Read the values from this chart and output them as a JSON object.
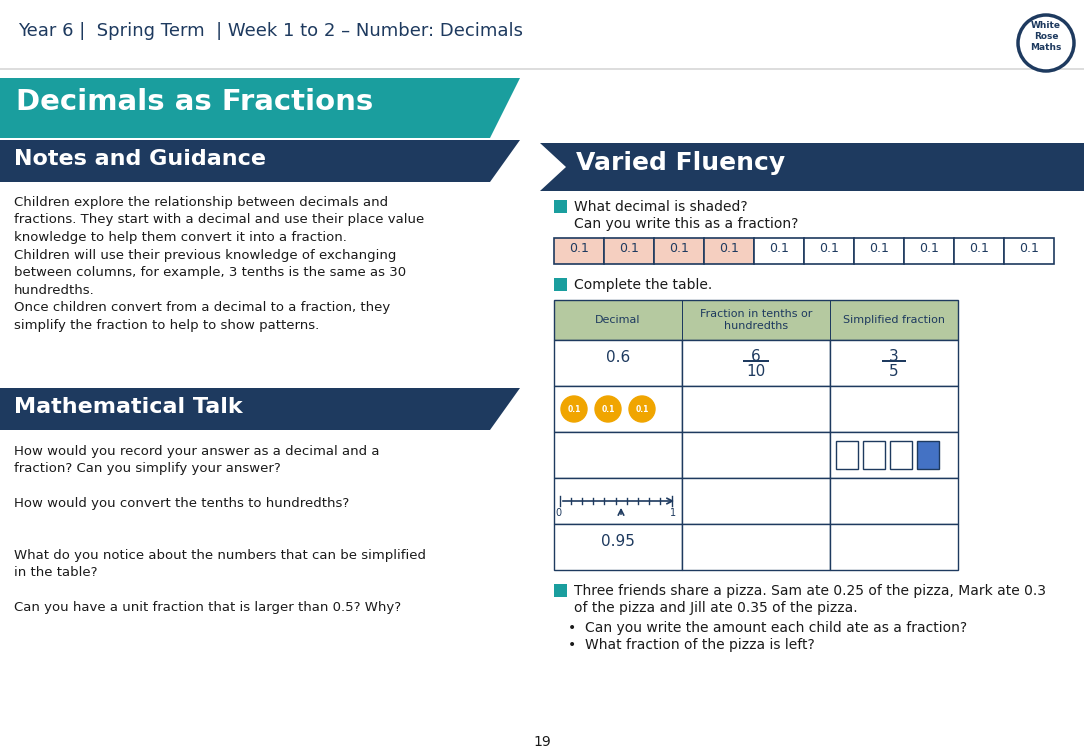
{
  "title_header": "Year 6 |  Spring Term  | Week 1 to 2 – Number: Decimals",
  "main_title": "Decimals as Fractions",
  "section1_title": "Notes and Guidance",
  "section2_title": "Mathematical Talk",
  "section3_title": "Varied Fluency",
  "notes_text_lines": [
    "Children explore the relationship between decimals and",
    "fractions. They start with a decimal and use their place value",
    "knowledge to help them convert it into a fraction.",
    "Children will use their previous knowledge of exchanging",
    "between columns, for example, 3 tenths is the same as 30",
    "hundredths.",
    "Once children convert from a decimal to a fraction, they",
    "simplify the fraction to help to show patterns."
  ],
  "math_talk_blocks": [
    [
      "How would you record your answer as a decimal and a",
      "fraction? Can you simplify your answer?"
    ],
    [
      "How would you convert the tenths to hundredths?"
    ],
    [
      "What do you notice about the numbers that can be simplified",
      "in the table?"
    ],
    [
      "Can you have a unit fraction that is larger than 0.5? Why?"
    ]
  ],
  "vf_q1a": "What decimal is shaded?",
  "vf_q1b": "Can you write this as a fraction?",
  "vf_q2": "Complete the table.",
  "vf_q3a": "Three friends share a pizza. Sam ate 0.25 of the pizza, Mark ate 0.3",
  "vf_q3b": "of the pizza and Jill ate 0.35 of the pizza.",
  "vf_q3_b1": "Can you write the amount each child ate as a fraction?",
  "vf_q3_b2": "What fraction of the pizza is left?",
  "page_num": "19",
  "c_teal": "#1a9e9e",
  "c_navy": "#1e3a5f",
  "c_peach": "#f5cfc0",
  "c_white": "#ffffff",
  "c_black": "#1a1a1a",
  "c_green_hdr": "#b5c9a0",
  "c_blue": "#4472c4",
  "c_gold": "#f0a500",
  "c_border": "#1e3a5f",
  "c_light_gray": "#e8e8e8"
}
